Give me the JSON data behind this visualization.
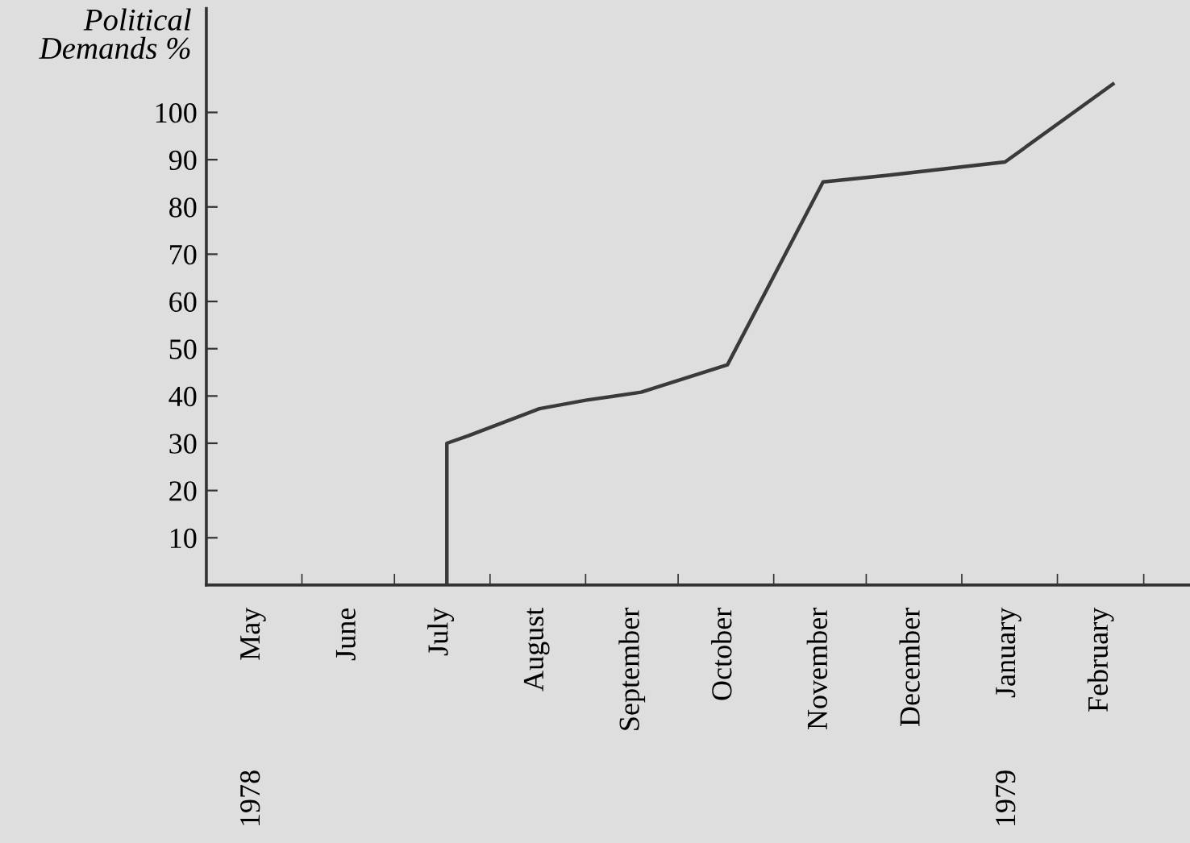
{
  "chart_data": {
    "type": "line",
    "ylabel": "Political\nDemands %",
    "x": [
      "1978-07-18",
      "1978-07-18",
      "1978-07-25",
      "1978-08-17",
      "1978-09-01",
      "1978-09-19",
      "1978-10-17",
      "1978-11-17",
      "1978-12-08",
      "1979-01-15",
      "1979-02-19"
    ],
    "series": [
      {
        "color": "#3a3a3a",
        "values": [
          0,
          30,
          31.6,
          37.3,
          39.1,
          40.8,
          46.6,
          85.3,
          86.7,
          89.5,
          106
        ]
      }
    ],
    "xlim": [
      "1978-05-01",
      "1979-03-16"
    ],
    "xticks": [
      {
        "value": "1978-05-16",
        "label": "May"
      },
      {
        "value": "1978-06-01",
        "label": null
      },
      {
        "value": "1978-06-16",
        "label": "June"
      },
      {
        "value": "1978-07-01",
        "label": null
      },
      {
        "value": "1978-07-16",
        "label": "July"
      },
      {
        "value": "1978-08-01",
        "label": null
      },
      {
        "value": "1978-08-16",
        "label": "August"
      },
      {
        "value": "1978-09-01",
        "label": null
      },
      {
        "value": "1978-09-16",
        "label": "September"
      },
      {
        "value": "1978-10-01",
        "label": null
      },
      {
        "value": "1978-10-16",
        "label": "October"
      },
      {
        "value": "1978-11-01",
        "label": null
      },
      {
        "value": "1978-11-16",
        "label": "November"
      },
      {
        "value": "1978-12-01",
        "label": null
      },
      {
        "value": "1978-12-16",
        "label": "December"
      },
      {
        "value": "1979-01-01",
        "label": null
      },
      {
        "value": "1979-01-16",
        "label": "January"
      },
      {
        "value": "1979-02-01",
        "label": null
      },
      {
        "value": "1979-02-15",
        "label": "February"
      },
      {
        "value": "1979-03-01",
        "label": null
      }
    ],
    "ylim": [
      0,
      122
    ],
    "yticks": [
      10,
      20,
      30,
      40,
      50,
      60,
      70,
      80,
      90,
      100
    ],
    "annotations": [
      "1978",
      "1979"
    ],
    "grid": false,
    "marker": "none",
    "line_style": "solid"
  }
}
